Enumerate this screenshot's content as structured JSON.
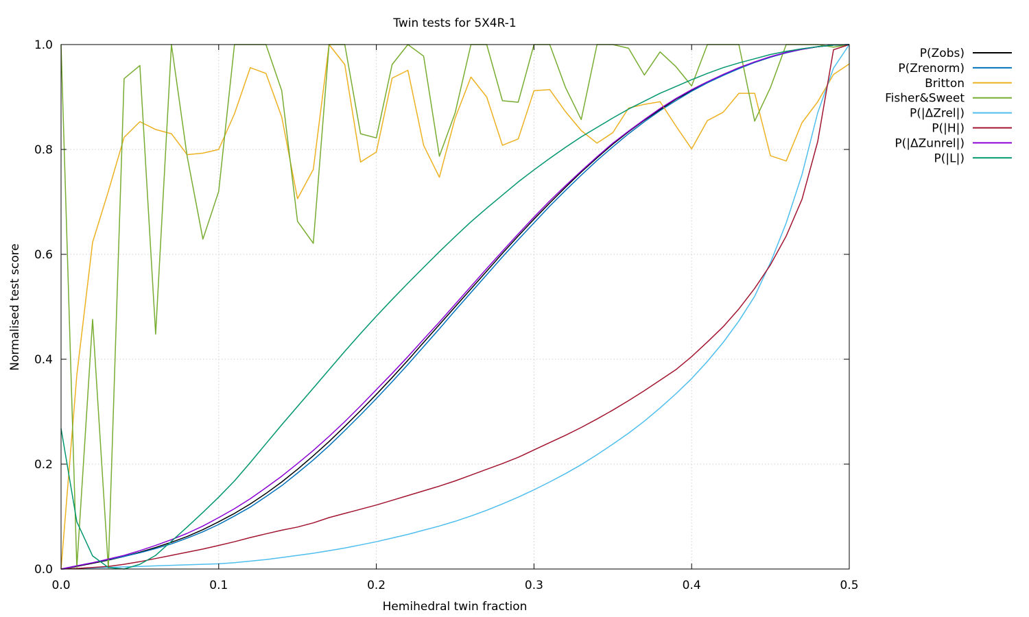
{
  "chart_data": {
    "type": "line",
    "title": "Twin tests for 5X4R-1",
    "xlabel": "Hemihedral twin fraction",
    "ylabel": "Normalised test score",
    "xlim": [
      0.0,
      0.5
    ],
    "ylim": [
      0.0,
      1.0
    ],
    "grid": true,
    "legend_position": "outside-top-right",
    "x_ticks": [
      "0.0",
      "0.1",
      "0.2",
      "0.3",
      "0.4",
      "0.5"
    ],
    "y_ticks": [
      "0.0",
      "0.2",
      "0.4",
      "0.6",
      "0.8",
      "1.0"
    ],
    "x": [
      0.0,
      0.01,
      0.02,
      0.03,
      0.04,
      0.05,
      0.06,
      0.07,
      0.08,
      0.09,
      0.1,
      0.11,
      0.12,
      0.13,
      0.14,
      0.15,
      0.16,
      0.17,
      0.18,
      0.19,
      0.2,
      0.21,
      0.22,
      0.23,
      0.24,
      0.25,
      0.26,
      0.27,
      0.28,
      0.29,
      0.3,
      0.31,
      0.32,
      0.33,
      0.34,
      0.35,
      0.36,
      0.37,
      0.38,
      0.39,
      0.4,
      0.41,
      0.42,
      0.43,
      0.44,
      0.45,
      0.46,
      0.47,
      0.48,
      0.49,
      0.5
    ],
    "series": [
      {
        "name": "P(Zobs)",
        "color": "#000000",
        "values": [
          0.0,
          0.005,
          0.011,
          0.017,
          0.024,
          0.032,
          0.041,
          0.051,
          0.062,
          0.075,
          0.09,
          0.106,
          0.124,
          0.144,
          0.166,
          0.19,
          0.216,
          0.243,
          0.272,
          0.302,
          0.333,
          0.365,
          0.398,
          0.432,
          0.466,
          0.5,
          0.534,
          0.568,
          0.602,
          0.635,
          0.667,
          0.698,
          0.728,
          0.757,
          0.784,
          0.81,
          0.834,
          0.856,
          0.876,
          0.896,
          0.912,
          0.928,
          0.942,
          0.955,
          0.966,
          0.976,
          0.985,
          0.991,
          0.996,
          0.999,
          1.0
        ]
      },
      {
        "name": "P(Zrenorm)",
        "color": "#0072bd",
        "values": [
          0.0,
          0.006,
          0.012,
          0.018,
          0.024,
          0.031,
          0.039,
          0.048,
          0.059,
          0.071,
          0.085,
          0.101,
          0.118,
          0.138,
          0.159,
          0.183,
          0.208,
          0.235,
          0.264,
          0.294,
          0.325,
          0.357,
          0.39,
          0.424,
          0.458,
          0.493,
          0.527,
          0.561,
          0.595,
          0.628,
          0.66,
          0.692,
          0.722,
          0.751,
          0.779,
          0.805,
          0.83,
          0.853,
          0.874,
          0.893,
          0.911,
          0.927,
          0.941,
          0.954,
          0.966,
          0.976,
          0.984,
          0.991,
          0.996,
          0.999,
          1.0
        ]
      },
      {
        "name": "Britton",
        "color": "#edb120",
        "values": [
          0.0,
          0.37,
          0.623,
          0.72,
          0.823,
          0.853,
          0.838,
          0.83,
          0.79,
          0.793,
          0.8,
          0.868,
          0.956,
          0.945,
          0.862,
          0.706,
          0.762,
          1.0,
          0.962,
          0.776,
          0.795,
          0.936,
          0.951,
          0.808,
          0.747,
          0.86,
          0.938,
          0.9,
          0.808,
          0.82,
          0.912,
          0.914,
          0.872,
          0.836,
          0.812,
          0.832,
          0.879,
          0.886,
          0.891,
          0.845,
          0.801,
          0.855,
          0.871,
          0.907,
          0.907,
          0.788,
          0.778,
          0.851,
          0.891,
          0.943,
          0.963
        ]
      },
      {
        "name": "Fisher&Sweet",
        "color": "#77ac30",
        "values": [
          1.0,
          0.003,
          0.476,
          0.002,
          0.935,
          0.96,
          0.448,
          1.0,
          0.787,
          0.629,
          0.72,
          1.0,
          1.0,
          1.0,
          0.912,
          0.663,
          0.621,
          1.0,
          1.0,
          0.83,
          0.822,
          0.962,
          1.0,
          0.978,
          0.787,
          0.87,
          1.0,
          1.0,
          0.893,
          0.89,
          1.0,
          1.0,
          0.918,
          0.857,
          1.0,
          1.0,
          0.993,
          0.942,
          0.986,
          0.958,
          0.921,
          1.0,
          1.0,
          1.0,
          0.854,
          0.918,
          1.0,
          1.0,
          1.0,
          0.995,
          1.0
        ]
      },
      {
        "name": "P(|ΔZrel|)",
        "color": "#4dbeee",
        "values": [
          0.0,
          0.001,
          0.002,
          0.003,
          0.004,
          0.005,
          0.006,
          0.007,
          0.008,
          0.009,
          0.01,
          0.012,
          0.015,
          0.018,
          0.022,
          0.026,
          0.03,
          0.035,
          0.04,
          0.046,
          0.052,
          0.059,
          0.066,
          0.074,
          0.082,
          0.091,
          0.101,
          0.112,
          0.124,
          0.137,
          0.151,
          0.166,
          0.182,
          0.199,
          0.218,
          0.238,
          0.259,
          0.282,
          0.307,
          0.334,
          0.363,
          0.396,
          0.432,
          0.473,
          0.52,
          0.584,
          0.66,
          0.752,
          0.87,
          0.955,
          1.0
        ]
      },
      {
        "name": "P(|H|)",
        "color": "#a2142f",
        "values": [
          0.0,
          0.001,
          0.003,
          0.005,
          0.009,
          0.014,
          0.02,
          0.026,
          0.032,
          0.038,
          0.045,
          0.052,
          0.06,
          0.067,
          0.074,
          0.08,
          0.088,
          0.098,
          0.106,
          0.114,
          0.122,
          0.131,
          0.14,
          0.149,
          0.158,
          0.168,
          0.179,
          0.19,
          0.201,
          0.213,
          0.227,
          0.241,
          0.255,
          0.27,
          0.286,
          0.303,
          0.321,
          0.34,
          0.36,
          0.38,
          0.405,
          0.433,
          0.462,
          0.496,
          0.535,
          0.58,
          0.635,
          0.705,
          0.815,
          0.99,
          1.0
        ]
      },
      {
        "name": "P(|ΔZunrel|)",
        "color": "#8b00d6",
        "values": [
          0.0,
          0.006,
          0.012,
          0.019,
          0.026,
          0.035,
          0.045,
          0.056,
          0.068,
          0.082,
          0.098,
          0.115,
          0.134,
          0.155,
          0.177,
          0.201,
          0.226,
          0.253,
          0.281,
          0.311,
          0.342,
          0.373,
          0.405,
          0.438,
          0.471,
          0.505,
          0.539,
          0.573,
          0.606,
          0.639,
          0.671,
          0.702,
          0.731,
          0.759,
          0.786,
          0.812,
          0.835,
          0.857,
          0.878,
          0.897,
          0.914,
          0.929,
          0.943,
          0.956,
          0.967,
          0.977,
          0.985,
          0.991,
          0.996,
          0.999,
          1.0
        ]
      },
      {
        "name": "P(|L|)",
        "color": "#00966e",
        "values": [
          0.268,
          0.09,
          0.025,
          0.003,
          0.0,
          0.009,
          0.026,
          0.053,
          0.08,
          0.108,
          0.137,
          0.168,
          0.203,
          0.239,
          0.275,
          0.31,
          0.345,
          0.38,
          0.415,
          0.449,
          0.482,
          0.514,
          0.545,
          0.575,
          0.605,
          0.634,
          0.662,
          0.688,
          0.713,
          0.738,
          0.761,
          0.783,
          0.804,
          0.824,
          0.842,
          0.86,
          0.877,
          0.892,
          0.907,
          0.92,
          0.933,
          0.945,
          0.956,
          0.965,
          0.973,
          0.981,
          0.987,
          0.992,
          0.996,
          0.999,
          1.0
        ]
      }
    ]
  }
}
